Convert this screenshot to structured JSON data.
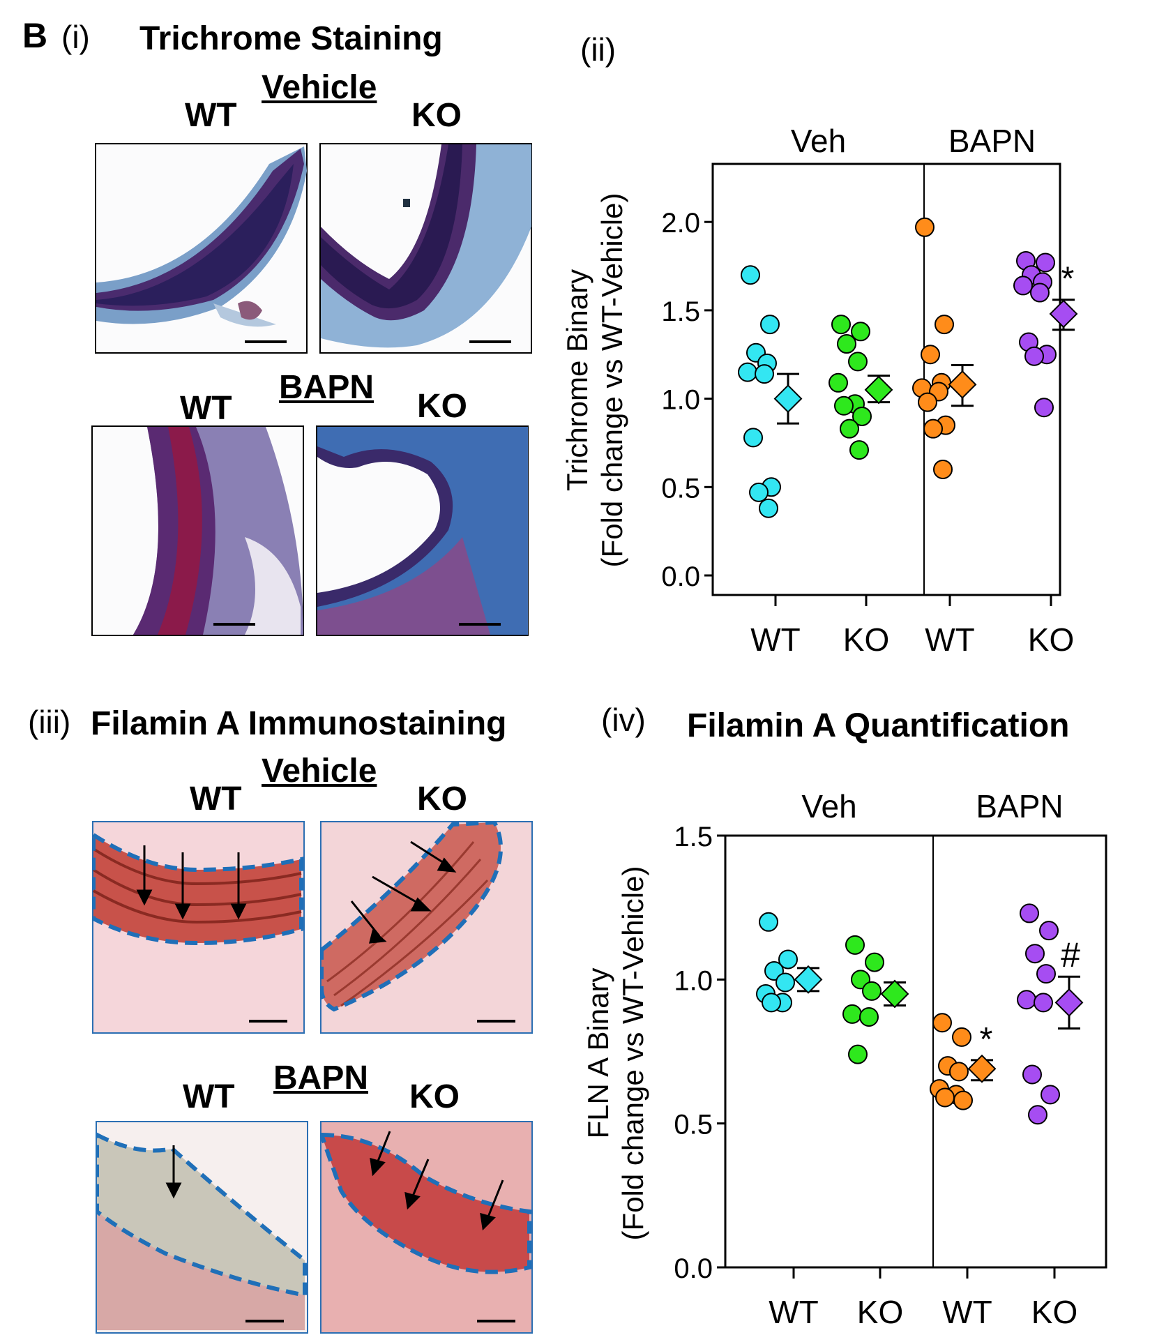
{
  "panel_letter": "B",
  "panel_i": {
    "number": "(i)",
    "title": "Trichrome Staining",
    "vehicle_label": "Vehicle",
    "bapn_label": "BAPN",
    "wt_label": "WT",
    "ko_label": "KO"
  },
  "panel_ii": {
    "number": "(ii)"
  },
  "panel_iii": {
    "number": "(iii)",
    "title": "Filamin A Immunostaining",
    "vehicle_label": "Vehicle",
    "bapn_label": "BAPN",
    "wt_label": "WT",
    "ko_label": "KO"
  },
  "panel_iv": {
    "number": "(iv)",
    "title": "Filamin A Quantification"
  },
  "colors": {
    "wt_veh": "#33e6f2",
    "ko_veh": "#2ee81d",
    "wt_bapn": "#ff8c1a",
    "ko_bapn": "#a64df2"
  },
  "chart_data": [
    {
      "type": "scatter",
      "title": "",
      "ylabel_line1": "Trichrome Binary",
      "ylabel_line2": "(Fold change vs WT-Vehicle)",
      "ylim": [
        0,
        2.3
      ],
      "yticks": [
        "0.0",
        "0.5",
        "1.0",
        "1.5",
        "2.0"
      ],
      "ytick_values": [
        0,
        0.5,
        1.0,
        1.5,
        2.0
      ],
      "group_labels": [
        "Veh",
        "BAPN"
      ],
      "categories": [
        "WT",
        "KO",
        "WT",
        "KO"
      ],
      "series": [
        {
          "group": "Veh",
          "genotype": "WT",
          "color": "#33e6f2",
          "points": [
            1.7,
            1.42,
            1.26,
            1.2,
            1.15,
            1.14,
            0.78,
            0.5,
            0.47,
            0.38
          ],
          "mean": 1.0,
          "sem_low": 0.86,
          "sem_high": 1.14
        },
        {
          "group": "Veh",
          "genotype": "KO",
          "color": "#2ee81d",
          "points": [
            1.42,
            1.38,
            1.31,
            1.21,
            1.09,
            0.97,
            0.96,
            0.9,
            0.83,
            0.71
          ],
          "mean": 1.05,
          "sem_low": 0.98,
          "sem_high": 1.13
        },
        {
          "group": "BAPN",
          "genotype": "WT",
          "color": "#ff8c1a",
          "points": [
            1.97,
            1.42,
            1.25,
            1.09,
            1.06,
            1.04,
            0.98,
            0.85,
            0.83,
            0.6
          ],
          "mean": 1.08,
          "sem_low": 0.96,
          "sem_high": 1.19
        },
        {
          "group": "BAPN",
          "genotype": "KO",
          "color": "#a64df2",
          "points": [
            1.78,
            1.77,
            1.7,
            1.66,
            1.64,
            1.6,
            1.32,
            1.25,
            1.24,
            0.95
          ],
          "mean": 1.48,
          "sem_low": 1.39,
          "sem_high": 1.56
        }
      ],
      "annotations": [
        {
          "text": "*",
          "series": 3
        }
      ]
    },
    {
      "type": "scatter",
      "title": "Filamin A Quantification",
      "ylabel_line1": "FLN A  Binary",
      "ylabel_line2": "(Fold change vs WT-Vehicle)",
      "ylim": [
        0,
        1.5
      ],
      "yticks": [
        "0.0",
        "0.5",
        "1.0",
        "1.5"
      ],
      "ytick_values": [
        0,
        0.5,
        1.0,
        1.5
      ],
      "group_labels": [
        "Veh",
        "BAPN"
      ],
      "categories": [
        "WT",
        "KO",
        "WT",
        "KO"
      ],
      "series": [
        {
          "group": "Veh",
          "genotype": "WT",
          "color": "#33e6f2",
          "points": [
            1.2,
            1.07,
            1.03,
            0.99,
            0.95,
            0.92,
            0.92
          ],
          "mean": 1.0,
          "sem_low": 0.96,
          "sem_high": 1.04
        },
        {
          "group": "Veh",
          "genotype": "KO",
          "color": "#2ee81d",
          "points": [
            1.12,
            1.06,
            1.0,
            0.96,
            0.88,
            0.87,
            0.74
          ],
          "mean": 0.95,
          "sem_low": 0.91,
          "sem_high": 0.99
        },
        {
          "group": "BAPN",
          "genotype": "WT",
          "color": "#ff8c1a",
          "points": [
            0.85,
            0.8,
            0.7,
            0.68,
            0.62,
            0.6,
            0.59,
            0.58
          ],
          "mean": 0.69,
          "sem_low": 0.65,
          "sem_high": 0.72
        },
        {
          "group": "BAPN",
          "genotype": "KO",
          "color": "#a64df2",
          "points": [
            1.23,
            1.17,
            1.09,
            1.02,
            0.93,
            0.92,
            0.67,
            0.6,
            0.53
          ],
          "mean": 0.92,
          "sem_low": 0.83,
          "sem_high": 1.01
        }
      ],
      "annotations": [
        {
          "text": "*",
          "series": 2
        },
        {
          "text": "#",
          "series": 3
        }
      ]
    }
  ]
}
